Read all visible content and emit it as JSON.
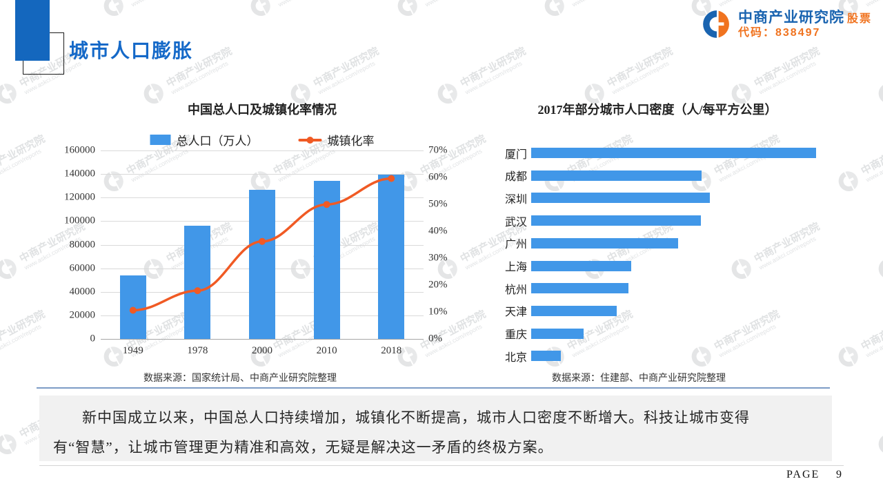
{
  "header": {
    "title": "城市人口膨胀",
    "accent_color": "#1467be"
  },
  "logo": {
    "org_name": "中商产业研究院",
    "stock_line": "股票代码：838497",
    "blue": "#1a64b0",
    "orange": "#f0731f"
  },
  "watermark": {
    "org": "中商产业研究院",
    "url": "www.askci.com/reports"
  },
  "chart_data": [
    {
      "type": "combo",
      "title": "中国总人口及城镇化率情况",
      "categories": [
        "1949",
        "1978",
        "2000",
        "2010",
        "2018"
      ],
      "series": [
        {
          "name": "总人口（万人）",
          "render": "bar",
          "axis": "left",
          "color": "#4197e8",
          "values": [
            54167,
            96259,
            126743,
            134091,
            139538
          ]
        },
        {
          "name": "城镇化率",
          "render": "line",
          "axis": "right",
          "color": "#f05a24",
          "values": [
            10.64,
            17.92,
            36.22,
            49.95,
            59.58
          ]
        }
      ],
      "left_axis": {
        "min": 0,
        "max": 160000,
        "step": 20000,
        "ticks": [
          "160000",
          "140000",
          "120000",
          "100000",
          "80000",
          "60000",
          "40000",
          "20000",
          "0"
        ]
      },
      "right_axis": {
        "min": 0,
        "max": 70,
        "step": 10,
        "ticks": [
          "70%",
          "60%",
          "50%",
          "40%",
          "30%",
          "20%",
          "10%",
          "0%"
        ]
      },
      "grid": true,
      "legend_position": "top",
      "source": "数据来源：国家统计局、中商产业研究院整理"
    },
    {
      "type": "bar",
      "orientation": "horizontal",
      "title": "2017年部分城市人口密度（人/每平方公里）",
      "categories": [
        "厦门",
        "成都",
        "深圳",
        "武汉",
        "广州",
        "上海",
        "杭州",
        "天津",
        "重庆",
        "北京"
      ],
      "values": [
        4400,
        2630,
        2760,
        2620,
        2270,
        1540,
        1500,
        1320,
        810,
        460
      ],
      "color": "#4197e8",
      "xlim": [
        0,
        4700
      ],
      "grid": false,
      "source": "数据来源：住建部、中商产业研究院整理"
    }
  ],
  "note": {
    "text": "新中国成立以来，中国总人口持续增加，城镇化不断提高，城市人口密度不断增大。科技让城市变得有“智慧”，让城市管理更为精准和高效，无疑是解决这一矛盾的终极方案。"
  },
  "footer": {
    "page_label": "PAGE",
    "page_number": "9"
  }
}
